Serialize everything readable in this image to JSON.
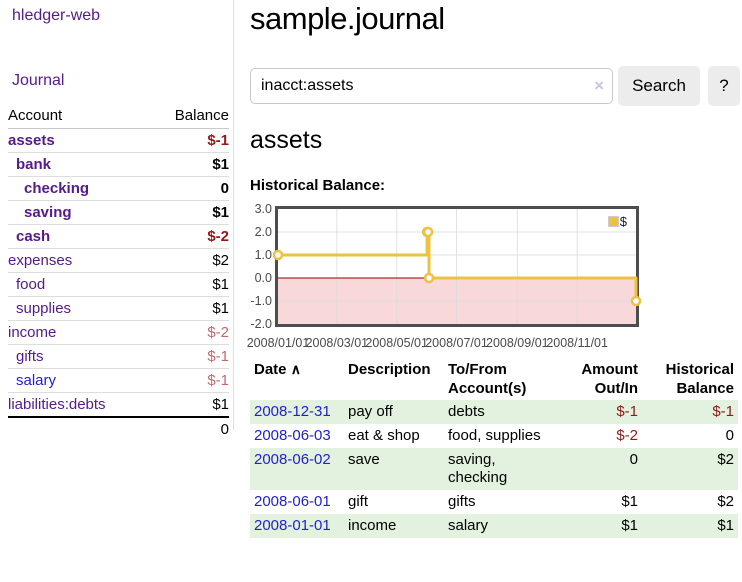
{
  "app": {
    "title": "hledger-web"
  },
  "sidebar": {
    "journal_link": "Journal",
    "accounts": {
      "header": {
        "account": "Account",
        "balance": "Balance"
      },
      "rows": [
        {
          "name": "assets",
          "balance": "$-1",
          "indent": 0,
          "bold": true,
          "balance_tone": "dark-red"
        },
        {
          "name": "bank",
          "balance": "$1",
          "indent": 1,
          "bold": true,
          "balance_tone": "black"
        },
        {
          "name": "checking",
          "balance": "0",
          "indent": 2,
          "bold": true,
          "balance_tone": "black"
        },
        {
          "name": "saving",
          "balance": "$1",
          "indent": 2,
          "bold": true,
          "balance_tone": "black"
        },
        {
          "name": "cash",
          "balance": "$-2",
          "indent": 1,
          "bold": true,
          "balance_tone": "dark-red"
        },
        {
          "name": "expenses",
          "balance": "$2",
          "indent": 0,
          "bold": false,
          "balance_tone": "black"
        },
        {
          "name": "food",
          "balance": "$1",
          "indent": 1,
          "bold": false,
          "balance_tone": "black"
        },
        {
          "name": "supplies",
          "balance": "$1",
          "indent": 1,
          "bold": false,
          "balance_tone": "black"
        },
        {
          "name": "income",
          "balance": "$-2",
          "indent": 0,
          "bold": false,
          "balance_tone": "light-red"
        },
        {
          "name": "gifts",
          "balance": "$-1",
          "indent": 1,
          "bold": false,
          "balance_tone": "light-red"
        },
        {
          "name": "salary",
          "balance": "$-1",
          "indent": 1,
          "bold": false,
          "balance_tone": "light-red",
          "link_color": "blue"
        },
        {
          "name": "liabilities:debts",
          "balance": "$1",
          "indent": 0,
          "bold": false,
          "balance_tone": "black",
          "section_end": true
        }
      ],
      "total": "0"
    }
  },
  "main": {
    "title": "sample.journal",
    "search": {
      "value": "inacct:assets",
      "clear_icon": "×",
      "search_button": "Search",
      "help_button": "?"
    },
    "account_heading": "assets",
    "chart_title": "Historical Balance:"
  },
  "chart_data": {
    "type": "line",
    "title": "Historical Balance:",
    "series": [
      {
        "name": "$",
        "color": "#edc240",
        "step": true,
        "points": [
          [
            "2008-01-01",
            1
          ],
          [
            "2008-06-01",
            2
          ],
          [
            "2008-06-02",
            2
          ],
          [
            "2008-06-03",
            0
          ],
          [
            "2008-12-31",
            -1
          ]
        ]
      }
    ],
    "x_ticks": [
      "2008/01/01",
      "2008/03/01",
      "2008/05/01",
      "2008/07/01",
      "2008/09/01",
      "2008/11/01"
    ],
    "y_ticks": [
      "3.0",
      "2.0",
      "1.0",
      "0.0",
      "-1.0",
      "-2.0"
    ],
    "ylim": [
      -2,
      3
    ],
    "x_range_dates": [
      "2008-01-01",
      "2008-12-31"
    ],
    "legend": {
      "label": "$",
      "position": "top-right",
      "swatch_color": "#edc240"
    },
    "grid": true,
    "gridline_color": "#dcdcdc",
    "negative_fill_color": "#f8d8d8",
    "zero_line_color": "#8b0000"
  },
  "register": {
    "sort_icon": "∧",
    "headers": [
      {
        "line1": "Date",
        "line2": "",
        "align": "left",
        "sortable": true
      },
      {
        "line1": "Description",
        "line2": "",
        "align": "left"
      },
      {
        "line1": "To/From",
        "line2": "Account(s)",
        "align": "left"
      },
      {
        "line1": "Amount",
        "line2": "Out/In",
        "align": "right"
      },
      {
        "line1": "Historical",
        "line2": "Balance",
        "align": "right"
      }
    ],
    "rows": [
      {
        "date": "2008-12-31",
        "description": "pay off",
        "accounts": "debts",
        "amount": "$-1",
        "amount_tone": "red",
        "balance": "$-1",
        "balance_tone": "red"
      },
      {
        "date": "2008-06-03",
        "description": "eat & shop",
        "accounts": "food, supplies",
        "amount": "$-2",
        "amount_tone": "red",
        "balance": "0",
        "balance_tone": "black"
      },
      {
        "date": "2008-06-02",
        "description": "save",
        "accounts": "saving, checking",
        "amount": "0",
        "amount_tone": "black",
        "balance": "$2",
        "balance_tone": "black"
      },
      {
        "date": "2008-06-01",
        "description": "gift",
        "accounts": "gifts",
        "amount": "$1",
        "amount_tone": "black",
        "balance": "$2",
        "balance_tone": "black"
      },
      {
        "date": "2008-01-01",
        "description": "income",
        "accounts": "salary",
        "amount": "$1",
        "amount_tone": "black",
        "balance": "$1",
        "balance_tone": "black"
      }
    ],
    "stripe_color": "#e3f1df"
  },
  "colors": {
    "link_purple": "#551a8b",
    "link_blue": "#2222cc",
    "negative_dark": "#8f1a1a",
    "negative_light": "#c4696f"
  }
}
